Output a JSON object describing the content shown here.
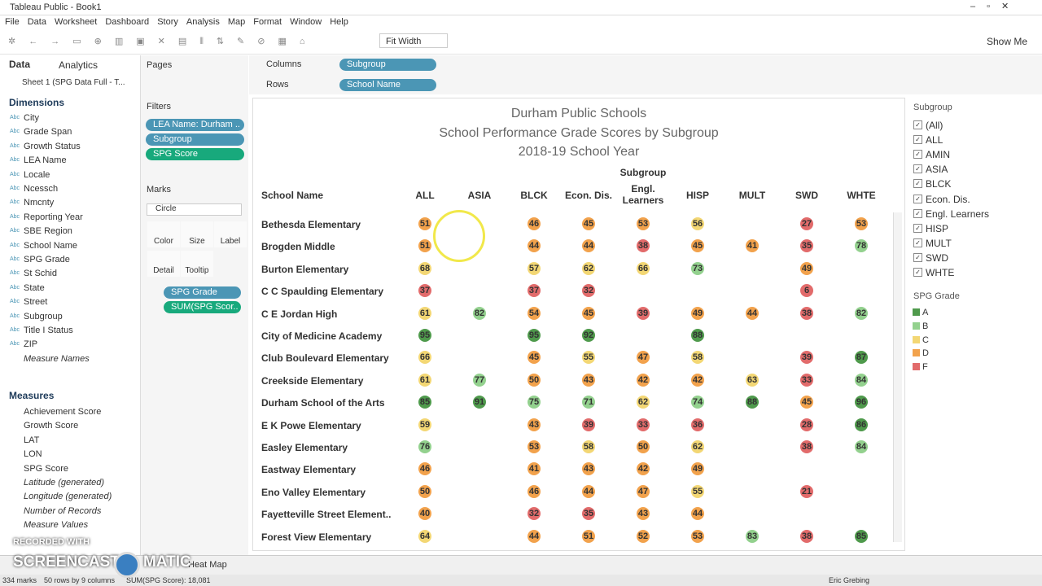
{
  "window": {
    "title": "Tableau Public - Book1"
  },
  "menu": [
    "File",
    "Data",
    "Worksheet",
    "Dashboard",
    "Story",
    "Analysis",
    "Map",
    "Format",
    "Window",
    "Help"
  ],
  "toolbar": {
    "fit": "Fit Width",
    "show_me": "Show Me"
  },
  "data_pane": {
    "tabs": [
      "Data",
      "Analytics"
    ],
    "source": "Sheet 1 (SPG Data Full - T...",
    "dimensions_title": "Dimensions",
    "dimensions": [
      "City",
      "Grade Span",
      "Growth Status",
      "LEA Name",
      "Locale",
      "Ncessch",
      "Nmcnty",
      "Reporting Year",
      "SBE Region",
      "School Name",
      "SPG Grade",
      "St Schid",
      "State",
      "Street",
      "Subgroup",
      "Title I Status",
      "ZIP",
      "Measure Names"
    ],
    "measures_title": "Measures",
    "measures": [
      "Achievement Score",
      "Growth Score",
      "LAT",
      "LON",
      "SPG Score",
      "Latitude (generated)",
      "Longitude (generated)",
      "Number of Records",
      "Measure Values"
    ]
  },
  "shelves": {
    "pages": "Pages",
    "filters_title": "Filters",
    "filters": [
      "LEA Name: Durham ..",
      "Subgroup",
      "SPG Score"
    ],
    "marks_title": "Marks",
    "mark_type": "Circle",
    "mark_buttons": [
      "Color",
      "Size",
      "Label",
      "Detail",
      "Tooltip"
    ],
    "mark_pills": [
      "SPG Grade",
      "SUM(SPG Scor.."
    ],
    "columns_label": "Columns",
    "columns_pill": "Subgroup",
    "rows_label": "Rows",
    "rows_pill": "School Name"
  },
  "viz": {
    "title": [
      "Durham Public Schools",
      "School Performance Grade Scores by Subgroup",
      "2018-19 School Year"
    ],
    "row_header": "School Name",
    "column_group": "Subgroup",
    "columns": [
      "ALL",
      "ASIA",
      "BLCK",
      "Econ. Dis.",
      "Engl. Learners",
      "HISP",
      "MULT",
      "SWD",
      "WHTE"
    ],
    "rows": [
      {
        "school": "Bethesda Elementary",
        "scores": [
          51,
          null,
          46,
          45,
          53,
          56,
          null,
          27,
          53
        ]
      },
      {
        "school": "Brogden Middle",
        "scores": [
          51,
          null,
          44,
          44,
          38,
          45,
          41,
          35,
          78
        ]
      },
      {
        "school": "Burton Elementary",
        "scores": [
          68,
          null,
          57,
          62,
          66,
          73,
          null,
          49,
          null
        ]
      },
      {
        "school": "C C Spaulding Elementary",
        "scores": [
          37,
          null,
          37,
          32,
          null,
          null,
          null,
          6,
          null
        ]
      },
      {
        "school": "C E Jordan High",
        "scores": [
          61,
          82,
          54,
          45,
          39,
          49,
          44,
          38,
          82
        ]
      },
      {
        "school": "City of Medicine Academy",
        "scores": [
          95,
          null,
          95,
          92,
          null,
          88,
          null,
          null,
          null
        ]
      },
      {
        "school": "Club Boulevard Elementary",
        "scores": [
          66,
          null,
          45,
          55,
          47,
          58,
          null,
          39,
          87
        ]
      },
      {
        "school": "Creekside Elementary",
        "scores": [
          61,
          77,
          50,
          43,
          42,
          42,
          63,
          33,
          84
        ]
      },
      {
        "school": "Durham School of the Arts",
        "scores": [
          85,
          91,
          75,
          71,
          62,
          74,
          88,
          45,
          96
        ]
      },
      {
        "school": "E K Powe Elementary",
        "scores": [
          59,
          null,
          43,
          39,
          33,
          36,
          null,
          28,
          86
        ]
      },
      {
        "school": "Easley Elementary",
        "scores": [
          76,
          null,
          53,
          58,
          50,
          62,
          null,
          38,
          84
        ]
      },
      {
        "school": "Eastway Elementary",
        "scores": [
          46,
          null,
          41,
          43,
          42,
          49,
          null,
          null,
          null
        ]
      },
      {
        "school": "Eno Valley Elementary",
        "scores": [
          50,
          null,
          46,
          44,
          47,
          55,
          null,
          21,
          null
        ]
      },
      {
        "school": "Fayetteville Street Element..",
        "scores": [
          40,
          null,
          32,
          35,
          43,
          44,
          null,
          null,
          null
        ]
      },
      {
        "school": "Forest View Elementary",
        "scores": [
          64,
          null,
          44,
          51,
          52,
          53,
          83,
          38,
          85
        ]
      }
    ]
  },
  "subgroup_filter": {
    "title": "Subgroup",
    "items": [
      "(All)",
      "ALL",
      "AMIN",
      "ASIA",
      "BLCK",
      "Econ. Dis.",
      "Engl. Learners",
      "HISP",
      "MULT",
      "SWD",
      "WHTE"
    ]
  },
  "grade_legend": {
    "title": "SPG Grade",
    "items": [
      {
        "label": "A",
        "color": "#4f9a4c"
      },
      {
        "label": "B",
        "color": "#93d18e"
      },
      {
        "label": "C",
        "color": "#f3d774"
      },
      {
        "label": "D",
        "color": "#f2a24c"
      },
      {
        "label": "F",
        "color": "#e26b6b"
      }
    ]
  },
  "sheet_tab": "Heat Map",
  "status": {
    "marks": "334 marks",
    "dims": "50 rows by 9 columns",
    "sum": "SUM(SPG Score): 18,081",
    "user": "Eric Grebing"
  },
  "watermark": {
    "line1": "RECORDED WITH",
    "line2": "SCREENCAST",
    "line3": "MATIC"
  }
}
